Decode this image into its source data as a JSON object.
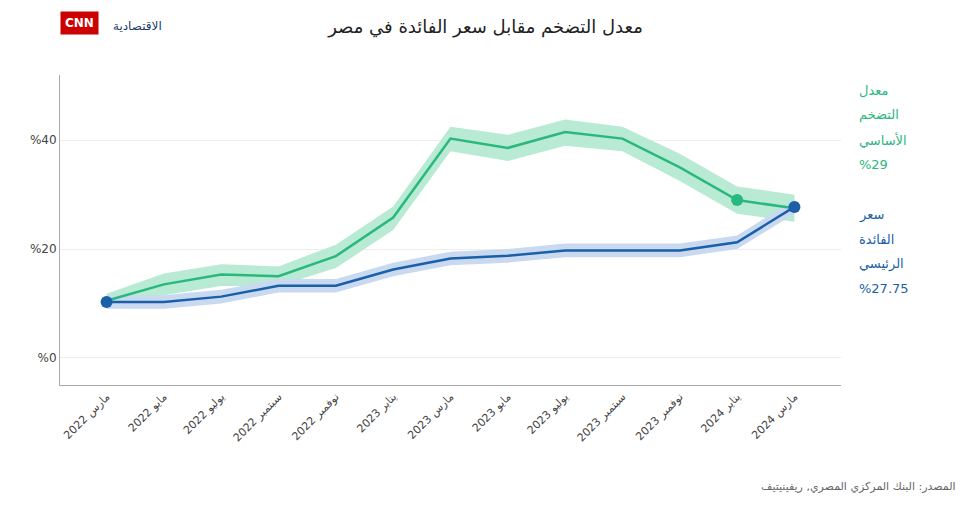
{
  "chart_data": {
    "type": "line",
    "title": "معدل التضخم مقابل سعر الفائدة في مصر",
    "source": "المصدر: البنك المركزي المصري, ريفينيتيف",
    "logo": [
      "CNN",
      "الاقتصادية"
    ],
    "categories": [
      "مارس 2022",
      "مايو 2022",
      "يوليو 2022",
      "سبتمبر 2022",
      "نوفمبر 2022",
      "يناير 2023",
      "مارس 2023",
      "مايو 2023",
      "يوليو 2023",
      "سبتمبر 2023",
      "نوفمبر 2023",
      "يناير 2024",
      "مارس 2024"
    ],
    "series": [
      {
        "color": "#2ab87e",
        "values": [
          10.5,
          13.5,
          15.3,
          15.0,
          18.7,
          25.8,
          40.3,
          38.6,
          41.5,
          40.3,
          35.0,
          29.0,
          27.5
        ],
        "band_upper": [
          11.8,
          15.5,
          17.2,
          16.8,
          20.8,
          27.8,
          42.5,
          41.0,
          43.8,
          42.5,
          37.5,
          31.5,
          30.0
        ],
        "band_lower": [
          9.2,
          11.5,
          13.2,
          13.2,
          16.5,
          23.5,
          38.0,
          36.2,
          39.0,
          38.0,
          32.5,
          26.5,
          25.0
        ],
        "band_color": "#b8ead4",
        "highlight": [
          "يناير 2024"
        ],
        "annotations": [
          "معدل",
          "التضخم",
          "الأساسي",
          "%29"
        ]
      },
      {
        "color": "#1a5fa8",
        "values": [
          10.25,
          10.25,
          11.25,
          13.25,
          13.25,
          16.25,
          18.25,
          18.75,
          19.75,
          19.75,
          19.75,
          21.25,
          27.75
        ],
        "band_upper": [
          11.5,
          11.5,
          12.5,
          14.5,
          14.5,
          17.5,
          19.5,
          20.0,
          21.0,
          21.0,
          21.0,
          22.5,
          29.0
        ],
        "band_lower": [
          9.0,
          9.0,
          10.0,
          12.0,
          12.0,
          15.0,
          17.0,
          17.5,
          18.5,
          18.5,
          18.5,
          20.0,
          26.5
        ],
        "band_color": "#c8d9f0",
        "highlight": [
          "مارس 2022",
          "مارس 2024"
        ],
        "annotations": [
          "سعر",
          "الفائدة",
          "الرئيسي",
          "%27.75"
        ]
      }
    ],
    "ylim": [
      -5,
      52
    ],
    "yticks": [
      {
        "value": 0,
        "label": "%0"
      },
      {
        "value": 20,
        "label": "%20"
      },
      {
        "value": 40,
        "label": "%40"
      }
    ],
    "grid": true
  }
}
